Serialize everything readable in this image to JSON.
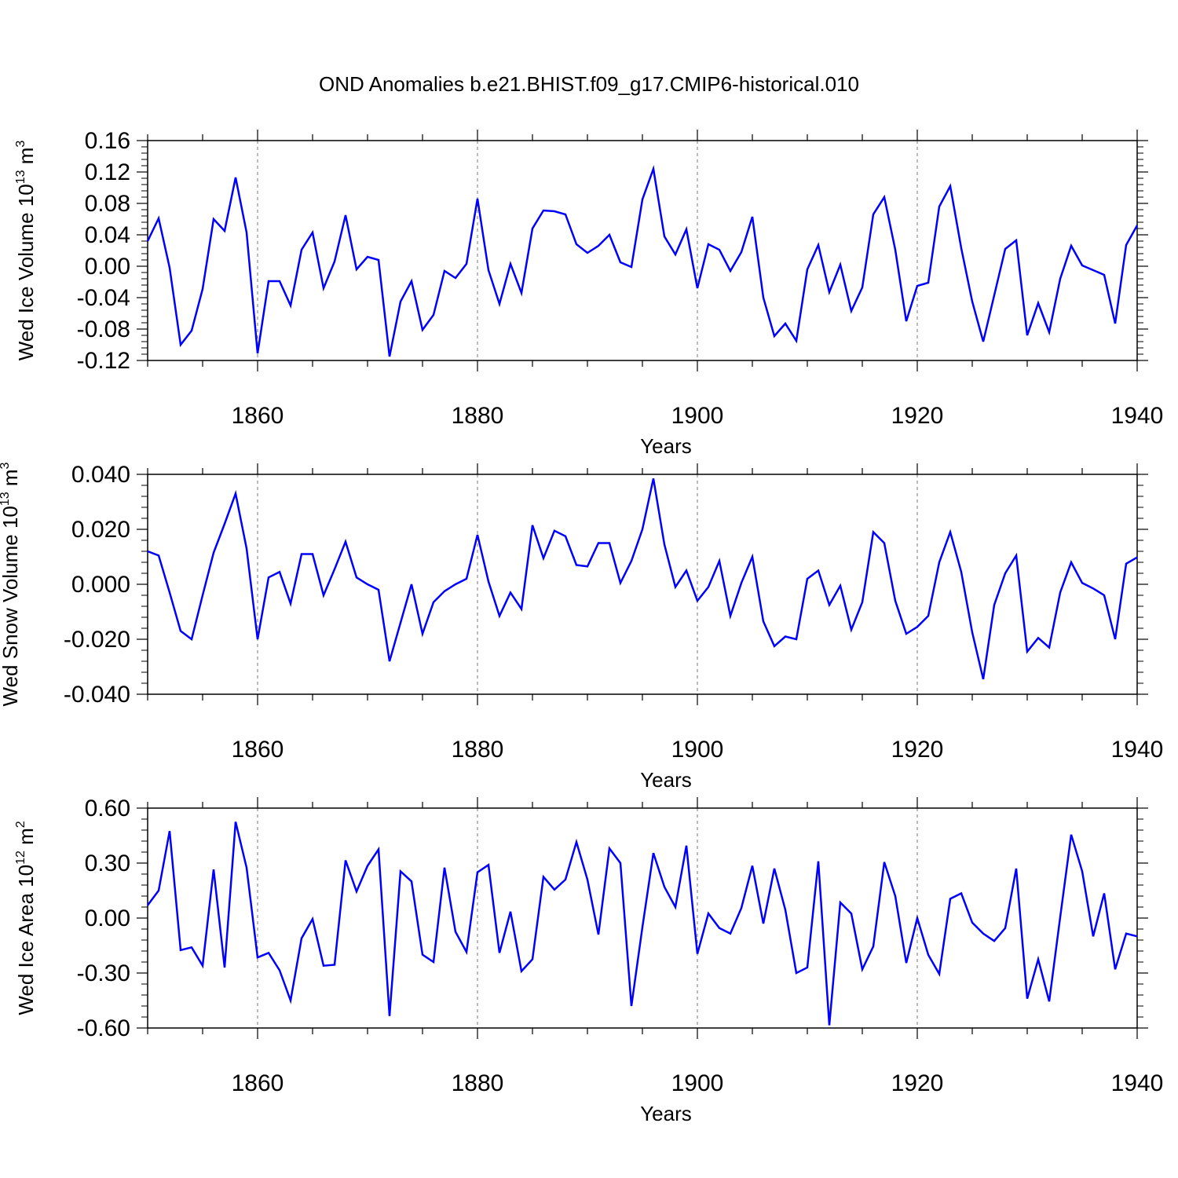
{
  "title": "OND Anomalies b.e21.BHIST.f09_g17.CMIP6-historical.010",
  "chart_data": [
    {
      "type": "line",
      "title": "OND Anomalies b.e21.BHIST.f09_g17.CMIP6-historical.010",
      "xlabel": "Years",
      "ylabel_main": "Wed Ice Volume 10",
      "ylabel_exp": "13",
      "ylabel_unit": " m",
      "ylabel_unit_exp": "3",
      "xlim": [
        1850,
        1940
      ],
      "ylim": [
        -0.12,
        0.16
      ],
      "xticks": [
        1860,
        1880,
        1900,
        1920,
        1940
      ],
      "yticks": [
        -0.12,
        -0.08,
        -0.04,
        0.0,
        0.04,
        0.08,
        0.12,
        0.16
      ],
      "ytick_labels": [
        "-0.12",
        "-0.08",
        "-0.04",
        "0.00",
        "0.04",
        "0.08",
        "0.12",
        "0.16"
      ],
      "series_color": "#0000ff",
      "x": [
        1850,
        1851,
        1852,
        1853,
        1854,
        1855,
        1856,
        1857,
        1858,
        1859,
        1860,
        1861,
        1862,
        1863,
        1864,
        1865,
        1866,
        1867,
        1868,
        1869,
        1870,
        1871,
        1872,
        1873,
        1874,
        1875,
        1876,
        1877,
        1878,
        1879,
        1880,
        1881,
        1882,
        1883,
        1884,
        1885,
        1886,
        1887,
        1888,
        1889,
        1890,
        1891,
        1892,
        1893,
        1894,
        1895,
        1896,
        1897,
        1898,
        1899,
        1900,
        1901,
        1902,
        1903,
        1904,
        1905,
        1906,
        1907,
        1908,
        1909,
        1910,
        1911,
        1912,
        1913,
        1914,
        1915,
        1916,
        1917,
        1918,
        1919,
        1920,
        1921,
        1922,
        1923,
        1924,
        1925,
        1926,
        1927,
        1928,
        1929,
        1930,
        1931,
        1932,
        1933,
        1934,
        1935,
        1936,
        1937,
        1938,
        1939,
        1940
      ],
      "values": [
        0.032,
        0.061,
        -0.002,
        -0.1,
        -0.082,
        -0.029,
        0.06,
        0.045,
        0.113,
        0.043,
        -0.111,
        -0.019,
        -0.019,
        -0.05,
        0.021,
        0.043,
        -0.028,
        0.006,
        0.065,
        -0.004,
        0.012,
        0.008,
        -0.115,
        -0.045,
        -0.019,
        -0.081,
        -0.062,
        -0.006,
        -0.015,
        0.003,
        0.086,
        -0.005,
        -0.048,
        0.003,
        -0.034,
        0.048,
        0.071,
        0.07,
        0.066,
        0.028,
        0.017,
        0.026,
        0.04,
        0.005,
        -0.001,
        0.085,
        0.124,
        0.038,
        0.015,
        0.047,
        -0.028,
        0.028,
        0.021,
        -0.006,
        0.018,
        0.063,
        -0.04,
        -0.089,
        -0.073,
        -0.095,
        -0.004,
        0.027,
        -0.033,
        0.002,
        -0.057,
        -0.027,
        0.066,
        0.088,
        0.021,
        -0.07,
        -0.025,
        -0.021,
        0.076,
        0.102,
        0.023,
        -0.045,
        -0.096,
        -0.037,
        0.022,
        0.033,
        -0.088,
        -0.047,
        -0.084,
        -0.016,
        0.026,
        0.001,
        -0.005,
        -0.011,
        -0.073,
        0.027,
        0.052
      ]
    },
    {
      "type": "line",
      "xlabel": "Years",
      "ylabel_main": "Wed Snow Volume 10",
      "ylabel_exp": "13",
      "ylabel_unit": " m",
      "ylabel_unit_exp": "3",
      "xlim": [
        1850,
        1940
      ],
      "ylim": [
        -0.04,
        0.04
      ],
      "xticks": [
        1860,
        1880,
        1900,
        1920,
        1940
      ],
      "yticks": [
        -0.04,
        -0.02,
        0.0,
        0.02,
        0.04
      ],
      "ytick_labels": [
        "-0.040",
        "-0.020",
        "0.000",
        "0.020",
        "0.040"
      ],
      "series_color": "#0000ff",
      "x": [
        1850,
        1851,
        1852,
        1853,
        1854,
        1855,
        1856,
        1857,
        1858,
        1859,
        1860,
        1861,
        1862,
        1863,
        1864,
        1865,
        1866,
        1867,
        1868,
        1869,
        1870,
        1871,
        1872,
        1873,
        1874,
        1875,
        1876,
        1877,
        1878,
        1879,
        1880,
        1881,
        1882,
        1883,
        1884,
        1885,
        1886,
        1887,
        1888,
        1889,
        1890,
        1891,
        1892,
        1893,
        1894,
        1895,
        1896,
        1897,
        1898,
        1899,
        1900,
        1901,
        1902,
        1903,
        1904,
        1905,
        1906,
        1907,
        1908,
        1909,
        1910,
        1911,
        1912,
        1913,
        1914,
        1915,
        1916,
        1917,
        1918,
        1919,
        1920,
        1921,
        1922,
        1923,
        1924,
        1925,
        1926,
        1927,
        1928,
        1929,
        1930,
        1931,
        1932,
        1933,
        1934,
        1935,
        1936,
        1937,
        1938,
        1939,
        1940
      ],
      "values": [
        0.012,
        0.0105,
        -0.003,
        -0.017,
        -0.02,
        -0.004,
        0.0115,
        0.022,
        0.033,
        0.013,
        -0.02,
        0.0025,
        0.0045,
        -0.007,
        0.011,
        0.011,
        -0.004,
        0.0055,
        0.0155,
        0.0025,
        0.0,
        -0.002,
        -0.028,
        -0.014,
        0.0,
        -0.018,
        -0.0065,
        -0.0025,
        0.0,
        0.002,
        0.018,
        0.001,
        -0.0115,
        -0.003,
        -0.009,
        0.0215,
        0.0095,
        0.0195,
        0.0175,
        0.007,
        0.0065,
        0.015,
        0.015,
        0.0005,
        0.0085,
        0.02,
        0.0385,
        0.0145,
        -0.001,
        0.005,
        -0.006,
        -0.001,
        0.0085,
        -0.0115,
        0.0005,
        0.01,
        -0.0135,
        -0.0225,
        -0.019,
        -0.02,
        0.002,
        0.005,
        -0.0075,
        -0.0005,
        -0.0165,
        -0.0065,
        0.019,
        0.015,
        -0.006,
        -0.018,
        -0.0155,
        -0.0115,
        0.008,
        0.019,
        0.0045,
        -0.0175,
        -0.0345,
        -0.0075,
        0.004,
        0.0105,
        -0.0245,
        -0.0195,
        -0.023,
        -0.003,
        0.008,
        0.0005,
        -0.0015,
        -0.004,
        -0.02,
        0.0075,
        0.0098
      ]
    },
    {
      "type": "line",
      "xlabel": "Years",
      "ylabel_main": "Wed Ice Area 10",
      "ylabel_exp": "12",
      "ylabel_unit": " m",
      "ylabel_unit_exp": "2",
      "xlim": [
        1850,
        1940
      ],
      "ylim": [
        -0.6,
        0.6
      ],
      "xticks": [
        1860,
        1880,
        1900,
        1920,
        1940
      ],
      "yticks": [
        -0.6,
        -0.3,
        0.0,
        0.3,
        0.6
      ],
      "ytick_labels": [
        "-0.60",
        "-0.30",
        "0.00",
        "0.30",
        "0.60"
      ],
      "series_color": "#0000ff",
      "x": [
        1850,
        1851,
        1852,
        1853,
        1854,
        1855,
        1856,
        1857,
        1858,
        1859,
        1860,
        1861,
        1862,
        1863,
        1864,
        1865,
        1866,
        1867,
        1868,
        1869,
        1870,
        1871,
        1872,
        1873,
        1874,
        1875,
        1876,
        1877,
        1878,
        1879,
        1880,
        1881,
        1882,
        1883,
        1884,
        1885,
        1886,
        1887,
        1888,
        1889,
        1890,
        1891,
        1892,
        1893,
        1894,
        1895,
        1896,
        1897,
        1898,
        1899,
        1900,
        1901,
        1902,
        1903,
        1904,
        1905,
        1906,
        1907,
        1908,
        1909,
        1910,
        1911,
        1912,
        1913,
        1914,
        1915,
        1916,
        1917,
        1918,
        1919,
        1920,
        1921,
        1922,
        1923,
        1924,
        1925,
        1926,
        1927,
        1928,
        1929,
        1930,
        1931,
        1932,
        1933,
        1934,
        1935,
        1936,
        1937,
        1938,
        1939,
        1940
      ],
      "values": [
        0.07,
        0.15,
        0.475,
        -0.175,
        -0.16,
        -0.26,
        0.265,
        -0.27,
        0.525,
        0.275,
        -0.215,
        -0.19,
        -0.285,
        -0.45,
        -0.11,
        -0.005,
        -0.26,
        -0.255,
        0.315,
        0.145,
        0.285,
        0.375,
        -0.535,
        0.255,
        0.2,
        -0.2,
        -0.24,
        0.275,
        -0.075,
        -0.185,
        0.25,
        0.29,
        -0.19,
        0.035,
        -0.29,
        -0.225,
        0.225,
        0.155,
        0.21,
        0.415,
        0.21,
        -0.09,
        0.38,
        0.3,
        -0.48,
        -0.05,
        0.355,
        0.17,
        0.06,
        0.395,
        -0.195,
        0.025,
        -0.055,
        -0.085,
        0.055,
        0.285,
        -0.03,
        0.27,
        0.045,
        -0.3,
        -0.27,
        0.31,
        -0.585,
        0.085,
        0.025,
        -0.28,
        -0.155,
        0.305,
        0.12,
        -0.245,
        0.0,
        -0.2,
        -0.305,
        0.105,
        0.135,
        -0.025,
        -0.085,
        -0.125,
        -0.055,
        0.27,
        -0.44,
        -0.225,
        -0.455,
        0.005,
        0.455,
        0.255,
        -0.1,
        0.135,
        -0.28,
        -0.085,
        -0.1
      ]
    }
  ]
}
